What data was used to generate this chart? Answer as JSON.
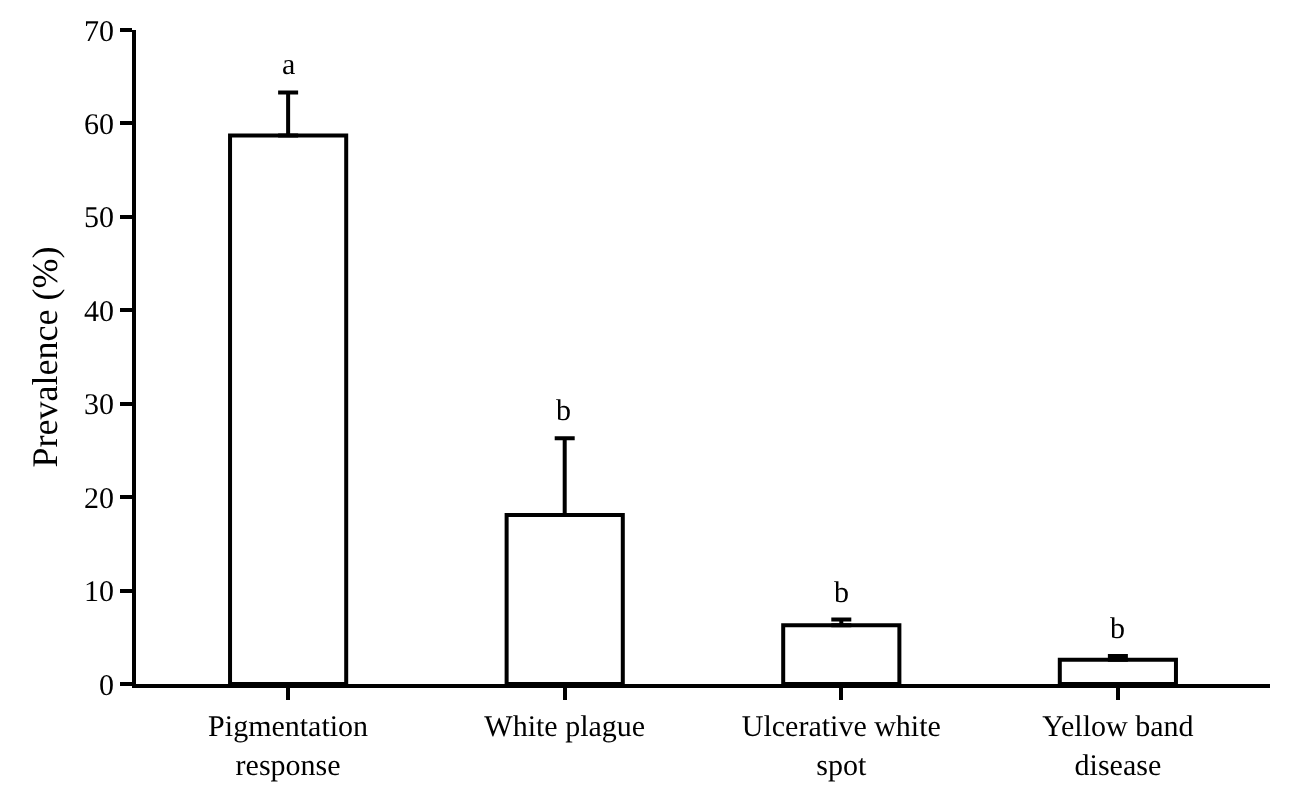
{
  "chart_data": {
    "type": "bar",
    "ylabel": "Prevalence (%)",
    "categories": [
      "Pigmentation response",
      "White plague",
      "Ulcerative white spot",
      "Yellow band disease"
    ],
    "values": [
      58.7,
      18.1,
      6.3,
      2.6
    ],
    "errors": [
      [
        58.7,
        63.3
      ],
      [
        18.1,
        26.3
      ],
      [
        6.3,
        6.9
      ],
      [
        2.6,
        3.0
      ]
    ],
    "color": "#ffffff",
    "annotations": [
      {
        "text": "a",
        "x": "Pigmentation response",
        "y": 63.3
      },
      {
        "text": "b",
        "x": "White plague",
        "y": 26.3
      },
      {
        "text": "b",
        "x": "Ulcerative white spot",
        "y": 6.9
      },
      {
        "text": "b",
        "x": "Yellow band disease",
        "y": 3.0
      }
    ],
    "ylim": [
      0,
      70
    ],
    "yticks": [
      0,
      10,
      20,
      30,
      40,
      50,
      60,
      70
    ],
    "grid": false
  }
}
